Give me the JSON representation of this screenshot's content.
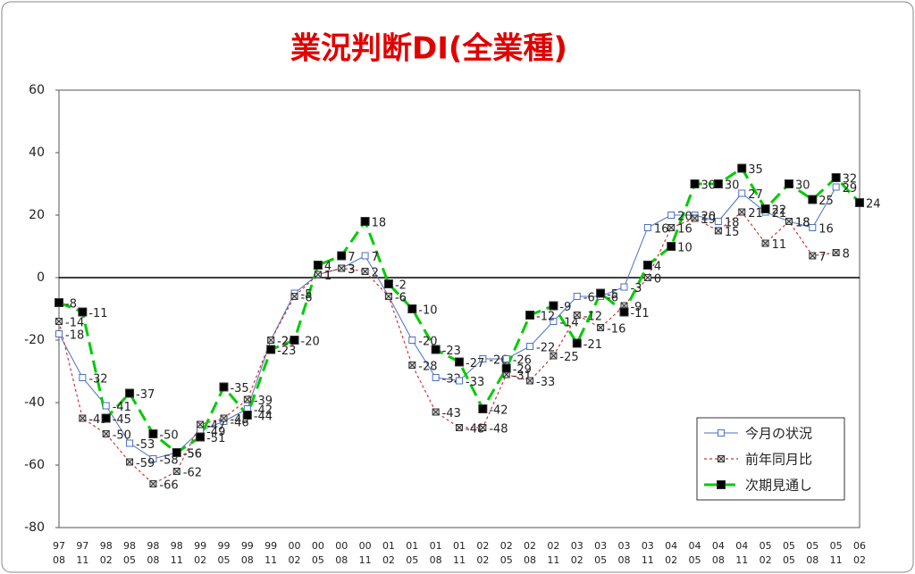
{
  "chart_data": {
    "type": "line",
    "title": "業況判断DI(全業種)",
    "categories": [
      [
        "97",
        "08"
      ],
      [
        "97",
        "11"
      ],
      [
        "98",
        "02"
      ],
      [
        "98",
        "05"
      ],
      [
        "98",
        "08"
      ],
      [
        "98",
        "11"
      ],
      [
        "99",
        "02"
      ],
      [
        "99",
        "05"
      ],
      [
        "99",
        "08"
      ],
      [
        "99",
        "11"
      ],
      [
        "00",
        "02"
      ],
      [
        "00",
        "05"
      ],
      [
        "00",
        "08"
      ],
      [
        "00",
        "11"
      ],
      [
        "01",
        "02"
      ],
      [
        "01",
        "05"
      ],
      [
        "01",
        "08"
      ],
      [
        "01",
        "11"
      ],
      [
        "02",
        "02"
      ],
      [
        "02",
        "05"
      ],
      [
        "02",
        "08"
      ],
      [
        "02",
        "11"
      ],
      [
        "03",
        "02"
      ],
      [
        "03",
        "05"
      ],
      [
        "03",
        "08"
      ],
      [
        "03",
        "11"
      ],
      [
        "04",
        "02"
      ],
      [
        "04",
        "05"
      ],
      [
        "04",
        "08"
      ],
      [
        "04",
        "11"
      ],
      [
        "05",
        "02"
      ],
      [
        "05",
        "05"
      ],
      [
        "05",
        "08"
      ],
      [
        "05",
        "11"
      ],
      [
        "06",
        "02"
      ]
    ],
    "series": [
      {
        "name": "今月の状況",
        "color": "#4a6fc4",
        "marker": "open",
        "dash": "solid",
        "values": [
          -18,
          -32,
          -41,
          -53,
          -58,
          -56,
          -49,
          -46,
          -42,
          -20,
          -5,
          1,
          3,
          7,
          -6,
          -20,
          -32,
          -33,
          -26,
          -26,
          -22,
          -14,
          -6,
          -6,
          -3,
          16,
          20,
          20,
          18,
          27,
          21,
          18,
          16,
          29,
          null
        ]
      },
      {
        "name": "前年同月比",
        "color": "#cc3333",
        "marker": "cross",
        "dash": "dotted",
        "values": [
          -14,
          -45,
          -50,
          -59,
          -66,
          -62,
          -47,
          -45,
          -39,
          -20,
          -6,
          1,
          3,
          2,
          -6,
          -28,
          -43,
          -48,
          -48,
          -31,
          -33,
          -25,
          -12,
          -16,
          -9,
          0,
          16,
          19,
          15,
          21,
          11,
          18,
          7,
          8,
          null
        ]
      },
      {
        "name": "次期見通し",
        "color": "#00cc00",
        "marker": "filled",
        "dash": "dashed",
        "values": [
          -8,
          -11,
          -45,
          -37,
          -50,
          -56,
          -51,
          -35,
          -44,
          -23,
          -20,
          4,
          7,
          18,
          -2,
          -10,
          -23,
          -27,
          -42,
          -29,
          -12,
          -9,
          -21,
          -5,
          -11,
          4,
          10,
          30,
          30,
          35,
          22,
          30,
          25,
          32,
          24
        ]
      }
    ],
    "ylim": [
      -80,
      60
    ],
    "yticks": [
      -80,
      -60,
      -40,
      -20,
      0,
      20,
      40,
      60
    ],
    "grid": false,
    "legend": "lower right"
  }
}
